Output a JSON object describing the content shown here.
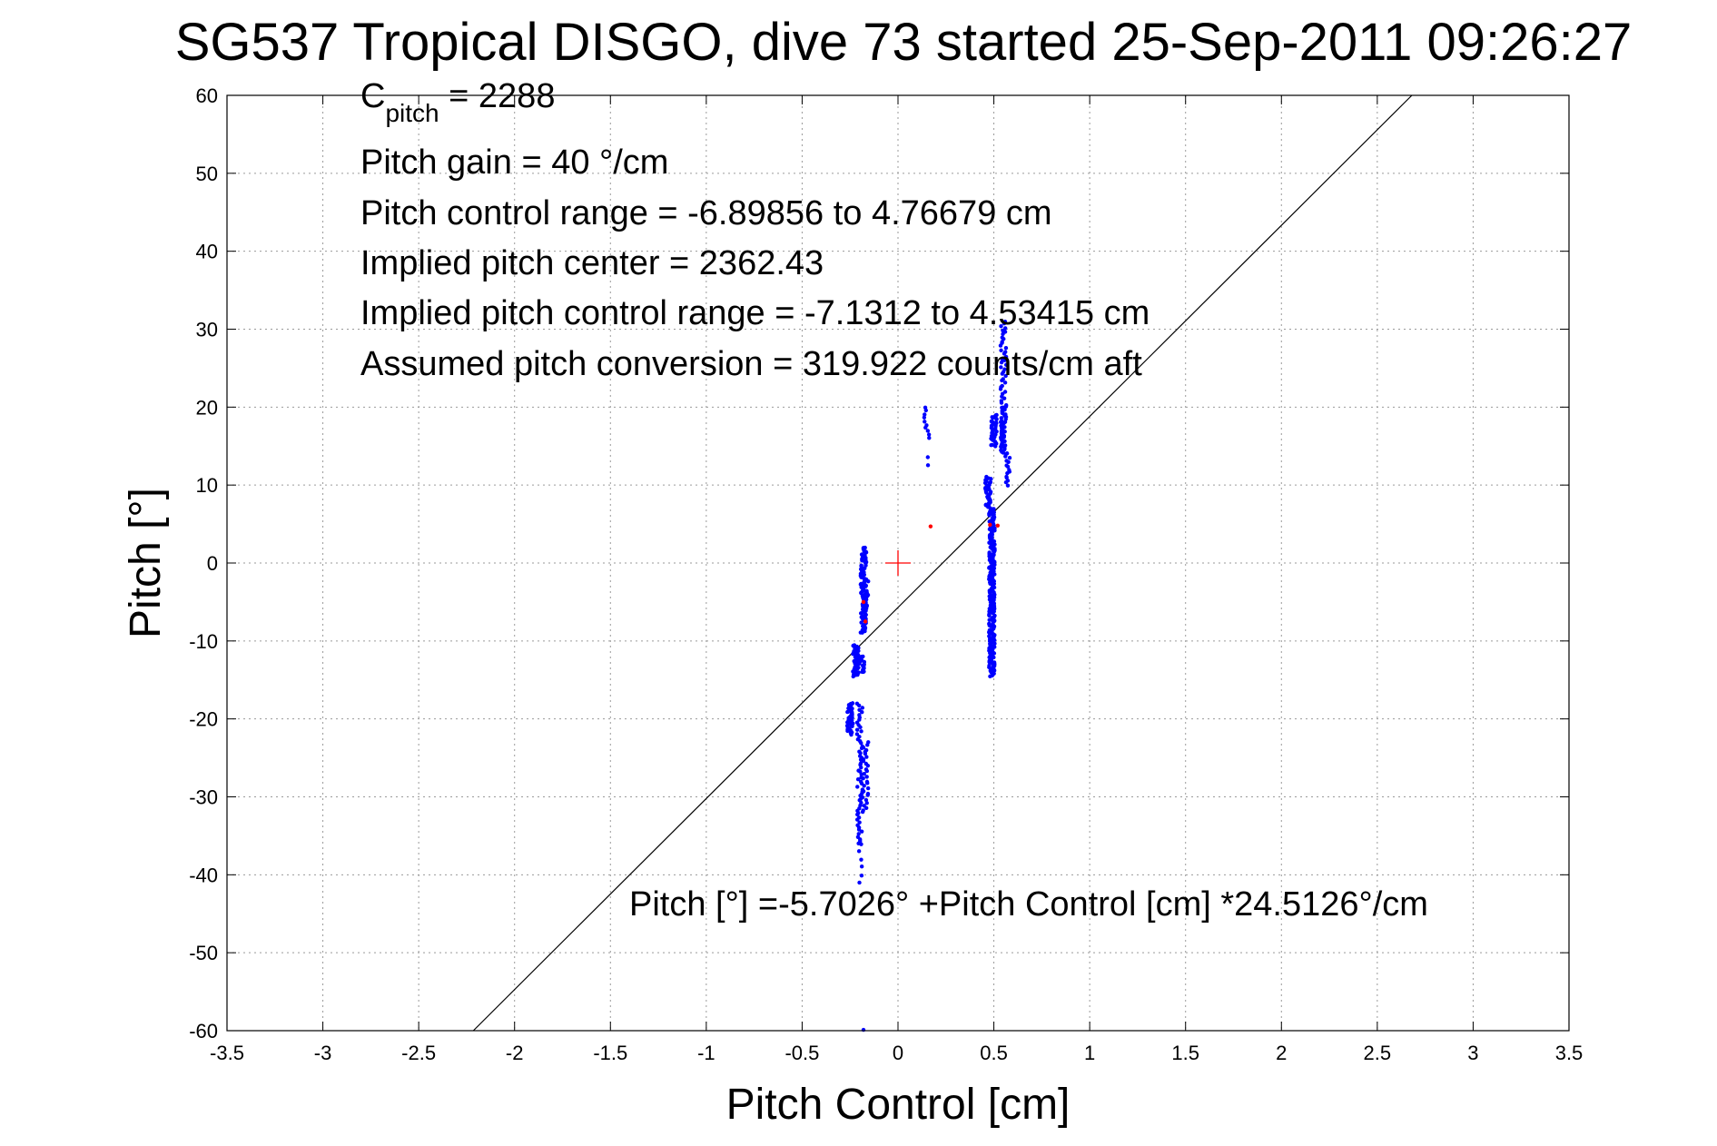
{
  "chart_data": {
    "type": "scatter",
    "title": "SG537 Tropical DISGO, dive 73 started 25-Sep-2011 09:26:27",
    "xlabel": "Pitch Control [cm]",
    "ylabel": "Pitch [°]",
    "xlim": [
      -3.5,
      3.5
    ],
    "ylim": [
      -60,
      60
    ],
    "xticks": [
      -3.5,
      -3,
      -2.5,
      -2,
      -1.5,
      -1,
      -0.5,
      0,
      0.5,
      1,
      1.5,
      2,
      2.5,
      3,
      3.5
    ],
    "yticks": [
      -60,
      -50,
      -40,
      -30,
      -20,
      -10,
      0,
      10,
      20,
      30,
      40,
      50,
      60
    ],
    "grid": true,
    "colors": {
      "points": "#0000ff",
      "outliers": "#ff0000",
      "fit_line": "#000000"
    },
    "annotations": {
      "c_pitch_prefix": "C",
      "c_pitch_sub": "pitch",
      "c_pitch_value": " = 2288",
      "pitch_gain": "Pitch gain = 40 °/cm",
      "pitch_control_range": "Pitch control range = -6.89856 to 4.76679 cm",
      "implied_center": "Implied pitch center = 2362.43",
      "implied_range": "Implied pitch control range = -7.1312 to 4.53415 cm",
      "assumed_conversion": "Assumed pitch conversion = 319.922 counts/cm aft",
      "fit_equation": "Pitch [°] =-5.7026° +Pitch Control [cm] *24.5126°/cm"
    },
    "fit": {
      "intercept": -5.7026,
      "slope": 24.5126
    },
    "center_marker": {
      "x": 0,
      "y": 0
    },
    "outliers": [
      {
        "x": 0.17,
        "y": 4.7
      },
      {
        "x": 0.48,
        "y": 4.9
      },
      {
        "x": 0.52,
        "y": 4.8
      },
      {
        "x": -0.18,
        "y": -5.0
      },
      {
        "x": -0.17,
        "y": -7.5
      }
    ],
    "series": [
      {
        "cluster": "low-a",
        "x": -0.18,
        "y_min": -9,
        "y_max": 2,
        "n": 90
      },
      {
        "cluster": "low-b",
        "x": -0.17,
        "y_min": -6,
        "y_max": -2,
        "n": 25
      },
      {
        "cluster": "low-c",
        "x": -0.22,
        "y_min": -14.5,
        "y_max": -10.5,
        "n": 60
      },
      {
        "cluster": "low-d",
        "x": -0.19,
        "y_min": -14,
        "y_max": -12,
        "n": 25
      },
      {
        "cluster": "low-e",
        "x": -0.25,
        "y_min": -22,
        "y_max": -18,
        "n": 50
      },
      {
        "cluster": "low-f",
        "x": -0.2,
        "y_min": -36,
        "y_max": -18,
        "n": 60
      },
      {
        "cluster": "low-g",
        "x": -0.17,
        "y_min": -32,
        "y_max": -23,
        "n": 30
      },
      {
        "cluster": "low-h",
        "x": -0.19,
        "y_min": -41,
        "y_max": -36,
        "n": 6
      },
      {
        "cluster": "low-i",
        "x": -0.19,
        "y_min": -59.8,
        "y_max": -59.8,
        "n": 1
      },
      {
        "cluster": "mid-a",
        "x": 0.15,
        "y_min": 16,
        "y_max": 20,
        "n": 10
      },
      {
        "cluster": "mid-b",
        "x": 0.15,
        "y_min": 12.5,
        "y_max": 13.5,
        "n": 2
      },
      {
        "cluster": "high-a",
        "x": 0.49,
        "y_min": -14.5,
        "y_max": 7,
        "n": 260
      },
      {
        "cluster": "high-b",
        "x": 0.47,
        "y_min": 7,
        "y_max": 11,
        "n": 40
      },
      {
        "cluster": "high-c",
        "x": 0.5,
        "y_min": 15,
        "y_max": 19,
        "n": 40
      },
      {
        "cluster": "high-d",
        "x": 0.55,
        "y_min": 14,
        "y_max": 20,
        "n": 50
      },
      {
        "cluster": "high-e",
        "x": 0.55,
        "y_min": 20,
        "y_max": 31,
        "n": 40
      },
      {
        "cluster": "high-f",
        "x": 0.57,
        "y_min": 10,
        "y_max": 14,
        "n": 15
      }
    ]
  }
}
